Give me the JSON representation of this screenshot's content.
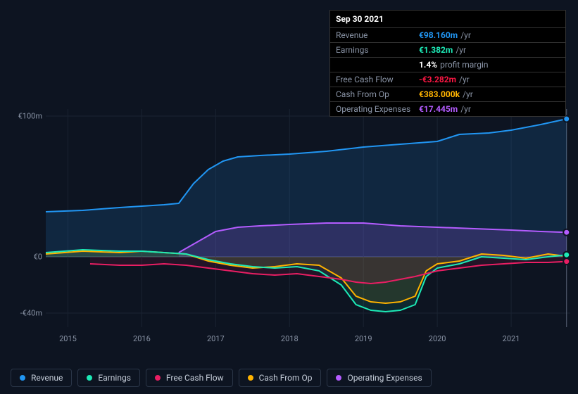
{
  "background_color": "#0d1421",
  "tooltip": {
    "date": "Sep 30 2021",
    "rows": [
      {
        "label": "Revenue",
        "value": "€98.160m",
        "unit": "/yr",
        "color": "#2196f3"
      },
      {
        "label": "Earnings",
        "value": "€1.382m",
        "unit": "/yr",
        "color": "#1de9b6"
      },
      {
        "label": "",
        "value": "1.4%",
        "unit": "profit margin",
        "color": "#ffffff"
      },
      {
        "label": "Free Cash Flow",
        "value": "-€3.282m",
        "unit": "/yr",
        "color": "#ff1744"
      },
      {
        "label": "Cash From Op",
        "value": "€383.000k",
        "unit": "/yr",
        "color": "#ffb300"
      },
      {
        "label": "Operating Expenses",
        "value": "€17.445m",
        "unit": "/yr",
        "color": "#b45cff"
      }
    ]
  },
  "chart": {
    "type": "area",
    "x_axis": {
      "min": 2014.7,
      "max": 2021.8,
      "ticks": [
        2015,
        2016,
        2017,
        2018,
        2019,
        2020,
        2021
      ]
    },
    "y_axis": {
      "min": -50,
      "max": 105,
      "ticks": [
        {
          "v": 100,
          "label": "€100m"
        },
        {
          "v": 0,
          "label": "€0"
        },
        {
          "v": -40,
          "label": "-€40m"
        }
      ]
    },
    "grid_color": "#1a2332",
    "baseline_color": "#3a4556",
    "cursor_x": 2021.75,
    "cursor_color": "#5a6578",
    "series": [
      {
        "name": "Revenue",
        "color": "#2196f3",
        "fill_opacity": 0.15,
        "line_width": 2,
        "points": [
          [
            2014.7,
            32
          ],
          [
            2015.2,
            33
          ],
          [
            2015.7,
            35
          ],
          [
            2016.0,
            36
          ],
          [
            2016.3,
            37
          ],
          [
            2016.5,
            38
          ],
          [
            2016.7,
            52
          ],
          [
            2016.9,
            62
          ],
          [
            2017.1,
            68
          ],
          [
            2017.3,
            71
          ],
          [
            2017.6,
            72
          ],
          [
            2018.0,
            73
          ],
          [
            2018.5,
            75
          ],
          [
            2019.0,
            78
          ],
          [
            2019.5,
            80
          ],
          [
            2020.0,
            82
          ],
          [
            2020.3,
            87
          ],
          [
            2020.7,
            88
          ],
          [
            2021.0,
            90
          ],
          [
            2021.4,
            94
          ],
          [
            2021.75,
            98
          ]
        ]
      },
      {
        "name": "Operating Expenses",
        "color": "#b45cff",
        "fill_opacity": 0.18,
        "line_width": 2,
        "points": [
          [
            2016.5,
            3
          ],
          [
            2016.8,
            12
          ],
          [
            2017.0,
            18
          ],
          [
            2017.3,
            21
          ],
          [
            2017.6,
            22
          ],
          [
            2018.0,
            23
          ],
          [
            2018.5,
            24
          ],
          [
            2019.0,
            24
          ],
          [
            2019.5,
            22
          ],
          [
            2020.0,
            21
          ],
          [
            2020.5,
            20
          ],
          [
            2021.0,
            19
          ],
          [
            2021.4,
            18
          ],
          [
            2021.75,
            17.4
          ]
        ]
      },
      {
        "name": "Cash From Op",
        "color": "#ffb300",
        "fill_opacity": 0.1,
        "line_width": 2,
        "points": [
          [
            2014.7,
            2
          ],
          [
            2015.2,
            4
          ],
          [
            2015.7,
            3
          ],
          [
            2016.0,
            4
          ],
          [
            2016.3,
            3
          ],
          [
            2016.6,
            2
          ],
          [
            2016.9,
            -3
          ],
          [
            2017.2,
            -6
          ],
          [
            2017.5,
            -8
          ],
          [
            2017.8,
            -7
          ],
          [
            2018.1,
            -5
          ],
          [
            2018.4,
            -6
          ],
          [
            2018.7,
            -15
          ],
          [
            2018.9,
            -28
          ],
          [
            2019.1,
            -32
          ],
          [
            2019.3,
            -33
          ],
          [
            2019.5,
            -32
          ],
          [
            2019.7,
            -28
          ],
          [
            2019.85,
            -10
          ],
          [
            2020.0,
            -5
          ],
          [
            2020.3,
            -3
          ],
          [
            2020.6,
            2
          ],
          [
            2020.9,
            1
          ],
          [
            2021.2,
            -1
          ],
          [
            2021.5,
            2
          ],
          [
            2021.75,
            0.4
          ]
        ]
      },
      {
        "name": "Earnings",
        "color": "#1de9b6",
        "fill_opacity": 0.1,
        "line_width": 2,
        "points": [
          [
            2014.7,
            3
          ],
          [
            2015.2,
            5
          ],
          [
            2015.7,
            4
          ],
          [
            2016.0,
            4
          ],
          [
            2016.3,
            3
          ],
          [
            2016.6,
            2
          ],
          [
            2016.9,
            -2
          ],
          [
            2017.2,
            -5
          ],
          [
            2017.5,
            -7
          ],
          [
            2017.8,
            -8
          ],
          [
            2018.1,
            -7
          ],
          [
            2018.4,
            -10
          ],
          [
            2018.7,
            -20
          ],
          [
            2018.9,
            -34
          ],
          [
            2019.1,
            -38
          ],
          [
            2019.3,
            -39
          ],
          [
            2019.5,
            -38
          ],
          [
            2019.7,
            -34
          ],
          [
            2019.85,
            -14
          ],
          [
            2020.0,
            -8
          ],
          [
            2020.3,
            -5
          ],
          [
            2020.6,
            0
          ],
          [
            2020.9,
            -1
          ],
          [
            2021.2,
            -2
          ],
          [
            2021.5,
            0
          ],
          [
            2021.75,
            1.4
          ]
        ]
      },
      {
        "name": "Free Cash Flow",
        "color": "#e91e63",
        "fill_opacity": 0.1,
        "line_width": 2,
        "points": [
          [
            2015.3,
            -5
          ],
          [
            2015.7,
            -6
          ],
          [
            2016.0,
            -6
          ],
          [
            2016.3,
            -5
          ],
          [
            2016.6,
            -6
          ],
          [
            2016.9,
            -8
          ],
          [
            2017.2,
            -10
          ],
          [
            2017.5,
            -12
          ],
          [
            2017.8,
            -13
          ],
          [
            2018.1,
            -12
          ],
          [
            2018.4,
            -14
          ],
          [
            2018.7,
            -16
          ],
          [
            2018.9,
            -18
          ],
          [
            2019.1,
            -19
          ],
          [
            2019.3,
            -18
          ],
          [
            2019.5,
            -16
          ],
          [
            2019.7,
            -14
          ],
          [
            2019.85,
            -12
          ],
          [
            2020.0,
            -10
          ],
          [
            2020.3,
            -8
          ],
          [
            2020.6,
            -6
          ],
          [
            2020.9,
            -5
          ],
          [
            2021.2,
            -4
          ],
          [
            2021.5,
            -4
          ],
          [
            2021.75,
            -3.3
          ]
        ]
      }
    ]
  },
  "legend": [
    {
      "label": "Revenue",
      "color": "#2196f3"
    },
    {
      "label": "Earnings",
      "color": "#1de9b6"
    },
    {
      "label": "Free Cash Flow",
      "color": "#e91e63"
    },
    {
      "label": "Cash From Op",
      "color": "#ffb300"
    },
    {
      "label": "Operating Expenses",
      "color": "#b45cff"
    }
  ]
}
